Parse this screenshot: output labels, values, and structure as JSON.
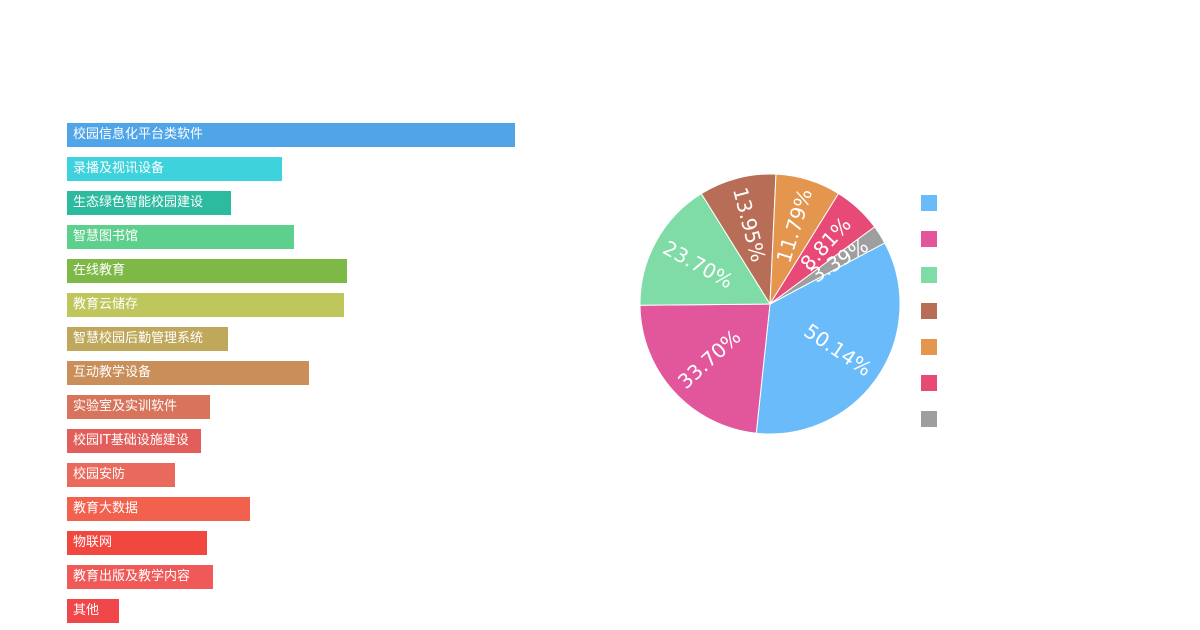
{
  "chart_data": [
    {
      "type": "bar",
      "orientation": "horizontal",
      "categories": [
        "校园信息化平台类软件",
        "录播及视讯设备",
        "生态绿色智能校园建设",
        "智慧图书馆",
        "在线教育",
        "教育云储存",
        "智慧校园后勤管理系统",
        "互动教学设备",
        "实验室及实训软件",
        "校园IT基础设施建设",
        "校园安防",
        "教育大数据",
        "物联网",
        "教育出版及教学内容",
        "其他"
      ],
      "values": [
        100,
        48,
        36.5,
        50.7,
        62.5,
        61.8,
        36,
        54,
        32,
        29.9,
        24,
        40.8,
        31.3,
        32.7,
        11.6
      ],
      "colors": [
        "#4FA5E8",
        "#3ED2DC",
        "#2DBBA0",
        "#5ED08E",
        "#7EB948",
        "#BFC65C",
        "#BFA85C",
        "#C98E5A",
        "#D8735C",
        "#E25E5A",
        "#E96A5C",
        "#F2604E",
        "#F2473F",
        "#EF5A58",
        "#F0484A"
      ],
      "title": "",
      "xlabel": "",
      "ylabel": ""
    },
    {
      "type": "pie",
      "labels": [
        "50.14%",
        "33.70%",
        "23.70%",
        "13.95%",
        "11.79%",
        "8.81%",
        "3.39%"
      ],
      "values": [
        50.14,
        33.7,
        23.7,
        13.95,
        11.79,
        8.81,
        3.39
      ],
      "colors": [
        "#6ABBF9",
        "#E2579C",
        "#80DCA6",
        "#B86D56",
        "#E4964E",
        "#E84A78",
        "#9E9E9E"
      ],
      "legend_position": "right",
      "legend_labels": [
        "",
        "",
        "",
        "",
        "",
        "",
        ""
      ]
    }
  ]
}
